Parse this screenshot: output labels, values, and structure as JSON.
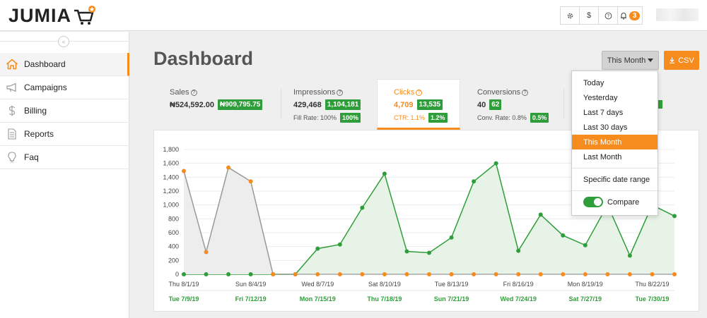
{
  "header": {
    "logo_text": "JUMIA",
    "icons": [
      "gear-icon",
      "dollar-icon",
      "help-icon",
      "bell-icon"
    ],
    "dollar_glyph": "$",
    "notification_count": "3"
  },
  "sidebar": {
    "items": [
      {
        "label": "Dashboard",
        "icon": "home-icon",
        "active": true
      },
      {
        "label": "Campaigns",
        "icon": "megaphone-icon"
      },
      {
        "label": "Billing",
        "icon": "dollar-icon"
      },
      {
        "label": "Reports",
        "icon": "document-icon"
      },
      {
        "label": "Faq",
        "icon": "lightbulb-icon"
      }
    ]
  },
  "main": {
    "title": "Dashboard",
    "date_button": "This Month",
    "csv_button": "CSV"
  },
  "stats": {
    "sales": {
      "label": "Sales",
      "value": "₦524,592.00",
      "compare": "₦909,795.75"
    },
    "impressions": {
      "label": "Impressions",
      "value": "429,468",
      "compare": "1,104,181",
      "sub_label": "Fill Rate: 100%",
      "sub_compare": "100%"
    },
    "clicks": {
      "label": "Clicks",
      "value": "4,709",
      "compare": "13,535",
      "sub_label": "CTR: 1.1%",
      "sub_compare": "1.2%"
    },
    "conversions": {
      "label": "Conversions",
      "value": "40",
      "compare": "62",
      "sub_label": "Conv. Rate: 0.8%",
      "sub_compare": "0.5%"
    }
  },
  "dropdown": {
    "items": [
      "Today",
      "Yesterday",
      "Last 7 days",
      "Last 30 days",
      "This Month",
      "Last Month"
    ],
    "selected": "This Month",
    "specific": "Specific date range",
    "compare_label": "Compare",
    "compare_on": true
  },
  "colors": {
    "accent": "#f68b1e",
    "green": "#2f9e3a",
    "gray_series": "#999999"
  },
  "chart_data": {
    "type": "line",
    "ylim": [
      0,
      1800
    ],
    "yticks": [
      0,
      200,
      400,
      600,
      800,
      1000,
      1200,
      1400,
      1600,
      1800
    ],
    "x_labels_current": [
      "Thu 8/1/19",
      "Sun 8/4/19",
      "Wed 8/7/19",
      "Sat 8/10/19",
      "Tue 8/13/19",
      "Fri 8/16/19",
      "Mon 8/19/19",
      "Thu 8/22/19"
    ],
    "x_labels_compare": [
      "Tue 7/9/19",
      "Fri 7/12/19",
      "Mon 7/15/19",
      "Thu 7/18/19",
      "Sun 7/21/19",
      "Wed 7/24/19",
      "Sat 7/27/19",
      "Tue 7/30/19"
    ],
    "series": [
      {
        "role": "compare",
        "values": [
          0,
          0,
          0,
          0,
          0,
          0,
          370,
          430,
          960,
          1450,
          330,
          310,
          530,
          1340,
          1600,
          340,
          860,
          560,
          420,
          1000,
          270,
          1000,
          840
        ],
        "color": "#2f9e3a",
        "fill": "#e6f3e6"
      },
      {
        "role": "current",
        "values": [
          1490,
          320,
          1540,
          1340,
          0,
          0,
          0,
          0,
          0,
          0,
          0,
          0,
          0,
          0,
          0,
          0,
          0,
          0,
          0,
          0,
          0,
          0,
          0
        ],
        "line_values": [
          1490,
          320,
          1540,
          1340,
          0
        ],
        "color": "#f68b1e",
        "line_color": "#999999",
        "fill": "#ededed"
      }
    ]
  }
}
